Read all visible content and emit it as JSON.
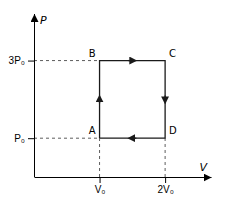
{
  "chart_data": {
    "type": "line",
    "x": [
      1,
      1,
      2,
      2,
      1
    ],
    "values": [
      1,
      3,
      3,
      1,
      1
    ],
    "color": "#1a1a1a",
    "xlabel": "V",
    "ylabel": "P",
    "xlim": [
      0,
      2.7
    ],
    "ylim": [
      0,
      4.2
    ],
    "xticks": [
      {
        "value": 1,
        "label": "V₀"
      },
      {
        "value": 2,
        "label": "2V₀"
      }
    ],
    "yticks": [
      {
        "value": 1,
        "label": "P₀"
      },
      {
        "value": 3,
        "label": "3P₀"
      }
    ],
    "annotations": [
      {
        "text": "A",
        "x": 1,
        "y": 1
      },
      {
        "text": "B",
        "x": 1,
        "y": 3
      },
      {
        "text": "C",
        "x": 2,
        "y": 3
      },
      {
        "text": "D",
        "x": 2,
        "y": 1
      }
    ]
  }
}
